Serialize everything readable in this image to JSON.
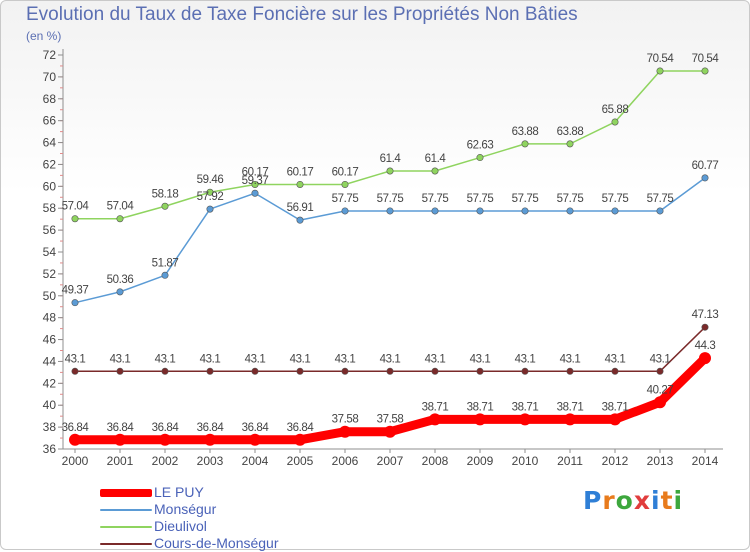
{
  "title": "Evolution du Taux de Taxe Foncière sur les Propriétés Non Bâties",
  "unit": "(en %)",
  "logo": {
    "text": "Proxiti",
    "colors": [
      "#2f7fd6",
      "#e87b1c",
      "#3da73d",
      "#e13d3d",
      "#2f7fd6",
      "#e87b1c",
      "#3da73d"
    ]
  },
  "chart_data": {
    "type": "line",
    "title": "Evolution du Taux de Taxe Foncière sur les Propriétés Non Bâties",
    "ylabel": "(en %)",
    "xlabel": "",
    "x": [
      "2000",
      "2001",
      "2002",
      "2003",
      "2004",
      "2005",
      "2006",
      "2007",
      "2008",
      "2009",
      "2010",
      "2011",
      "2012",
      "2013",
      "2014"
    ],
    "ylim": [
      36,
      72
    ],
    "yticks": [
      36,
      38,
      40,
      42,
      44,
      46,
      48,
      50,
      52,
      54,
      56,
      58,
      60,
      62,
      64,
      66,
      68,
      70,
      72
    ],
    "grid": false,
    "legend_position": "bottom-left",
    "series": [
      {
        "name": "LE PUY",
        "color": "#ff0000",
        "values": [
          36.84,
          36.84,
          36.84,
          36.84,
          36.84,
          36.84,
          37.58,
          37.58,
          38.71,
          38.71,
          38.71,
          38.71,
          38.71,
          40.27,
          44.3
        ],
        "labels": [
          "36.84",
          "36.84",
          "36.84",
          "36.84",
          "36.84",
          "36.84",
          "37.58",
          "37.58",
          "38.71",
          "38.71",
          "38.71",
          "38.71",
          "38.71",
          "40.27",
          "44.3"
        ]
      },
      {
        "name": "Monségur",
        "color": "#5b9bd5",
        "values": [
          49.37,
          50.36,
          51.87,
          57.92,
          59.37,
          56.91,
          57.75,
          57.75,
          57.75,
          57.75,
          57.75,
          57.75,
          57.75,
          57.75,
          60.77
        ],
        "labels": [
          "49.37",
          "50.36",
          "51.87",
          "57.92",
          "59.37",
          "56.91",
          "57.75",
          "57.75",
          "57.75",
          "57.75",
          "57.75",
          "57.75",
          "57.75",
          "57.75",
          "60.77"
        ]
      },
      {
        "name": "Dieulivol",
        "color": "#8fd45f",
        "values": [
          57.04,
          57.04,
          58.18,
          59.46,
          60.17,
          60.17,
          60.17,
          61.4,
          61.4,
          62.63,
          63.88,
          63.88,
          65.88,
          70.54,
          70.54
        ],
        "labels": [
          "57.04",
          "57.04",
          "58.18",
          "59.46",
          "60.17",
          "60.17",
          "60.17",
          "61.4",
          "61.4",
          "62.63",
          "63.88",
          "63.88",
          "65.88",
          "70.54",
          "70.54"
        ]
      },
      {
        "name": "Cours-de-Monségur",
        "color": "#7a2a2a",
        "values": [
          43.1,
          43.1,
          43.1,
          43.1,
          43.1,
          43.1,
          43.1,
          43.1,
          43.1,
          43.1,
          43.1,
          43.1,
          43.1,
          43.1,
          47.13
        ],
        "labels": [
          "43.1",
          "43.1",
          "43.1",
          "43.1",
          "43.1",
          "43.1",
          "43.1",
          "43.1",
          "43.1",
          "43.1",
          "43.1",
          "43.1",
          "43.1",
          "43.1",
          "47.13"
        ]
      }
    ]
  }
}
